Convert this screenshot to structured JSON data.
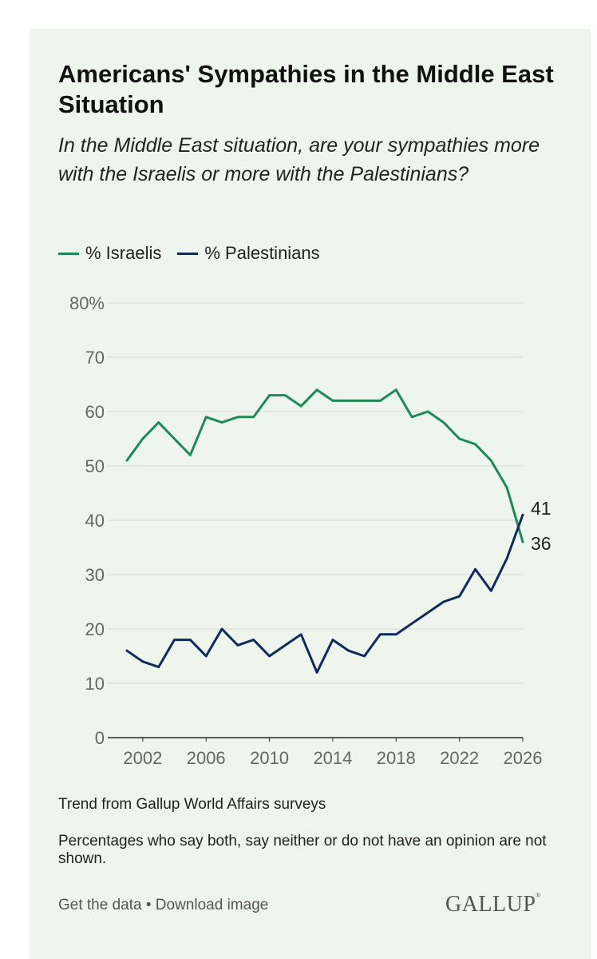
{
  "header": {
    "title": "Americans' Sympathies in the Middle East Situation",
    "subtitle": "In the Middle East situation, are your sympathies more with the Israelis or more with the Palestinians?"
  },
  "legend": {
    "israelis": "% Israelis",
    "palestinians": "% Palestinians"
  },
  "colors": {
    "israelis": "#1f8a55",
    "palestinians": "#0f2a5c",
    "grid": "#d4dad2",
    "axis": "#666666",
    "background": "#eef5ec"
  },
  "chart_data": {
    "type": "line",
    "title": "Americans' Sympathies in the Middle East Situation",
    "xlabel": "",
    "ylabel": "",
    "xlim": [
      2001,
      2026
    ],
    "ylim": [
      0,
      80
    ],
    "yticks": [
      0,
      10,
      20,
      30,
      40,
      50,
      60,
      70,
      80
    ],
    "ytick_labels": [
      "0",
      "10",
      "20",
      "30",
      "40",
      "50",
      "60",
      "70",
      "80%"
    ],
    "xticks": [
      2002,
      2006,
      2010,
      2014,
      2018,
      2022,
      2026
    ],
    "xtick_labels": [
      "2002",
      "2006",
      "2010",
      "2014",
      "2018",
      "2022",
      "2026"
    ],
    "grid": true,
    "series": [
      {
        "name": "% Israelis",
        "x": [
          2001,
          2002,
          2003,
          2004,
          2005,
          2006,
          2007,
          2008,
          2009,
          2010,
          2011,
          2012,
          2013,
          2014,
          2015,
          2016,
          2017,
          2018,
          2019,
          2020,
          2021,
          2022,
          2023,
          2024,
          2025,
          2026
        ],
        "values": [
          51,
          55,
          58,
          55,
          52,
          59,
          58,
          59,
          59,
          63,
          63,
          61,
          64,
          62,
          62,
          62,
          62,
          64,
          59,
          60,
          58,
          55,
          54,
          51,
          46,
          36
        ],
        "end_label": "36"
      },
      {
        "name": "% Palestinians",
        "x": [
          2001,
          2002,
          2003,
          2004,
          2005,
          2006,
          2007,
          2008,
          2009,
          2010,
          2011,
          2012,
          2013,
          2014,
          2015,
          2016,
          2017,
          2018,
          2019,
          2020,
          2021,
          2022,
          2023,
          2024,
          2025,
          2026
        ],
        "values": [
          16,
          14,
          13,
          18,
          18,
          15,
          20,
          17,
          18,
          15,
          17,
          19,
          12,
          18,
          16,
          15,
          19,
          19,
          21,
          23,
          25,
          26,
          31,
          27,
          33,
          41
        ],
        "end_label": "41"
      }
    ]
  },
  "footer": {
    "source": "Trend from Gallup World Affairs surveys",
    "note": "Percentages who say both, say neither or do not have an opinion are not shown.",
    "get_data": "Get the data",
    "separator": " • ",
    "download": "Download image",
    "logo": "GALLUP",
    "logo_mark": "®"
  }
}
